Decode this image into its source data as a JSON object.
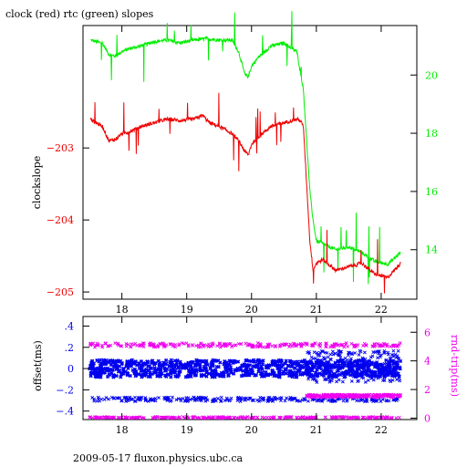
{
  "chart_data": [
    {
      "type": "line",
      "title": "clock (red) rtc (green) slopes",
      "ylabel": "clockslope",
      "xlim": [
        17.4,
        22.55
      ],
      "ylim": [
        -205.1,
        -201.3
      ],
      "y2lim": [
        12.3,
        21.7
      ],
      "x_ticks": [
        18,
        19,
        20,
        21,
        22
      ],
      "y_ticks": [
        -205,
        -204,
        -203
      ],
      "y2_ticks": [
        14,
        16,
        18,
        20
      ],
      "grid": false,
      "colors": {
        "clock": "#ee0000",
        "rtc": "#00ee00",
        "frame": "#000000"
      },
      "series": [
        {
          "axis": "left",
          "x": [
            17.52,
            17.6,
            17.7,
            17.8,
            17.9,
            18.0,
            18.1,
            18.3,
            18.5,
            18.7,
            18.9,
            19.1,
            19.25,
            19.35,
            19.5,
            19.7,
            19.8,
            19.9,
            19.95,
            20.0,
            20.1,
            20.3,
            20.5,
            20.7,
            20.75,
            20.8,
            20.85,
            20.9,
            20.95,
            21.0,
            21.1,
            21.3,
            21.5,
            21.7,
            21.9,
            22.1,
            22.3
          ],
          "values": [
            -202.6,
            -202.65,
            -202.7,
            -202.9,
            -202.88,
            -202.8,
            -202.78,
            -202.7,
            -202.65,
            -202.6,
            -202.62,
            -202.6,
            -202.55,
            -202.65,
            -202.7,
            -202.8,
            -202.9,
            -203.05,
            -203.1,
            -202.95,
            -202.85,
            -202.7,
            -202.65,
            -202.6,
            -202.62,
            -202.7,
            -203.5,
            -204.3,
            -204.7,
            -204.6,
            -204.55,
            -204.7,
            -204.65,
            -204.6,
            -204.75,
            -204.8,
            -204.6
          ]
        },
        {
          "axis": "right",
          "x": [
            17.52,
            17.6,
            17.7,
            17.8,
            17.9,
            18.0,
            18.1,
            18.3,
            18.5,
            18.7,
            18.9,
            19.1,
            19.3,
            19.5,
            19.7,
            19.8,
            19.9,
            19.95,
            20.0,
            20.1,
            20.3,
            20.5,
            20.7,
            20.8,
            20.9,
            20.95,
            21.0,
            21.1,
            21.3,
            21.5,
            21.7,
            21.9,
            22.1,
            22.3
          ],
          "values": [
            21.2,
            21.15,
            21.1,
            20.7,
            20.65,
            20.8,
            20.9,
            21.0,
            21.15,
            21.2,
            21.1,
            21.2,
            21.25,
            21.2,
            21.2,
            20.8,
            20.0,
            19.95,
            20.3,
            20.6,
            21.0,
            21.1,
            20.8,
            19.5,
            16.0,
            15.0,
            14.3,
            14.2,
            14.0,
            14.1,
            13.9,
            13.6,
            13.5,
            13.9
          ]
        }
      ]
    },
    {
      "type": "scatter",
      "ylabel": "offset(ms)",
      "y2label": "rnd-trip(ms)",
      "xlim": [
        17.4,
        22.55
      ],
      "ylim": [
        -0.48,
        0.49
      ],
      "y2lim": [
        -0.1,
        7.1
      ],
      "x_ticks": [
        18,
        19,
        20,
        21,
        22
      ],
      "y_ticks": [
        -0.4,
        -0.2,
        0,
        0.2,
        0.4
      ],
      "y2_ticks": [
        0,
        2,
        4,
        6
      ],
      "grid": false,
      "colors": {
        "offset": "#0000ee",
        "roundtrip": "#ee00ee",
        "frame": "#000000"
      },
      "bands": [
        {
          "series": "offset",
          "axis": "left",
          "x": [
            17.5,
            22.3
          ],
          "center": 0.0,
          "spread": 0.08,
          "note": "dense band"
        },
        {
          "series": "offset",
          "axis": "left",
          "x": [
            20.85,
            22.3
          ],
          "center": 0.02,
          "spread": 0.15,
          "note": "wider band after 21"
        },
        {
          "series": "offset",
          "axis": "left",
          "x": [
            17.5,
            22.3
          ],
          "center": -0.29,
          "spread": 0.02,
          "note": "lower cluster"
        },
        {
          "series": "roundtrip",
          "axis": "right",
          "x": [
            17.5,
            22.3
          ],
          "center": 0.05,
          "spread": 0.05,
          "note": "base"
        },
        {
          "series": "roundtrip",
          "axis": "right",
          "x": [
            17.5,
            22.3
          ],
          "center": 5.1,
          "spread": 0.15,
          "note": "upper band"
        },
        {
          "series": "roundtrip",
          "axis": "right",
          "x": [
            20.85,
            22.3
          ],
          "center": 1.55,
          "spread": 0.1,
          "note": "mid band after 21"
        }
      ]
    }
  ],
  "footer": "2009-05-17 fluxon.physics.ubc.ca"
}
